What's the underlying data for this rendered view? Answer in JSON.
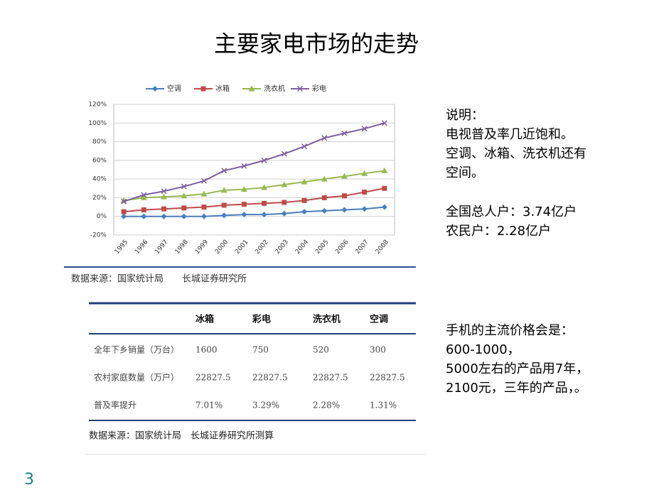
{
  "title": "主要家电市场的走势",
  "chart_data": {
    "type": "line",
    "categories": [
      "1995",
      "1996",
      "1997",
      "1998",
      "1999",
      "2000",
      "2001",
      "2002",
      "2003",
      "2004",
      "2005",
      "2006",
      "2007",
      "2008"
    ],
    "series": [
      {
        "name": "空调",
        "color": "#4a7ebb",
        "marker": "diamond",
        "values": [
          0,
          0,
          0,
          0,
          0,
          1,
          2,
          2,
          3,
          5,
          6,
          7,
          8,
          10
        ]
      },
      {
        "name": "冰箱",
        "color": "#be4b48",
        "marker": "square",
        "values": [
          5,
          7,
          8,
          9,
          10,
          12,
          13,
          14,
          15,
          17,
          20,
          22,
          26,
          30
        ]
      },
      {
        "name": "洗衣机",
        "color": "#98b954",
        "marker": "triangle",
        "values": [
          17,
          20,
          21,
          22,
          24,
          28,
          29,
          31,
          34,
          37,
          40,
          43,
          46,
          49
        ]
      },
      {
        "name": "彩电",
        "color": "#7d60a0",
        "marker": "x",
        "values": [
          16,
          23,
          27,
          32,
          38,
          49,
          54,
          60,
          67,
          75,
          84,
          89,
          94,
          100
        ]
      }
    ],
    "ylim": [
      -20,
      120
    ],
    "yticks": [
      {
        "value": -20,
        "label": "-20%"
      },
      {
        "value": 0,
        "label": "0%"
      },
      {
        "value": 20,
        "label": "20%"
      },
      {
        "value": 40,
        "label": "40%"
      },
      {
        "value": 60,
        "label": "60%"
      },
      {
        "value": 80,
        "label": "80%"
      },
      {
        "value": 100,
        "label": "100%"
      },
      {
        "value": 120,
        "label": "120%"
      }
    ],
    "grid": true,
    "legend": "top"
  },
  "chart_source": "数据来源：国家统计局　　长城证券研究所",
  "table": {
    "columns": [
      "冰箱",
      "彩电",
      "洗衣机",
      "空调"
    ],
    "rows": [
      {
        "label": "全年下乡销量（万台）",
        "cells": [
          "1600",
          "750",
          "520",
          "300"
        ]
      },
      {
        "label": "农村家庭数量（万户）",
        "cells": [
          "22827.5",
          "22827.5",
          "22827.5",
          "22827.5"
        ]
      },
      {
        "label": "普及率提升",
        "cells": [
          "7.01%",
          "3.29%",
          "2.28%",
          "1.31%"
        ]
      }
    ],
    "source": "数据来源：国家统计局　长城证券研究所测算"
  },
  "notes": [
    [
      "说明：",
      "电视普及率几近饱和。",
      "空调、冰箱、洗衣机还有",
      "空间。"
    ],
    [
      "全国总人户：3.74亿户",
      "农民户：2.28亿户"
    ],
    [
      "手机的主流价格会是：",
      "600-1000，",
      "5000左右的产品用7年，",
      "2100元，三年的产品，。"
    ]
  ],
  "page_number": "3"
}
